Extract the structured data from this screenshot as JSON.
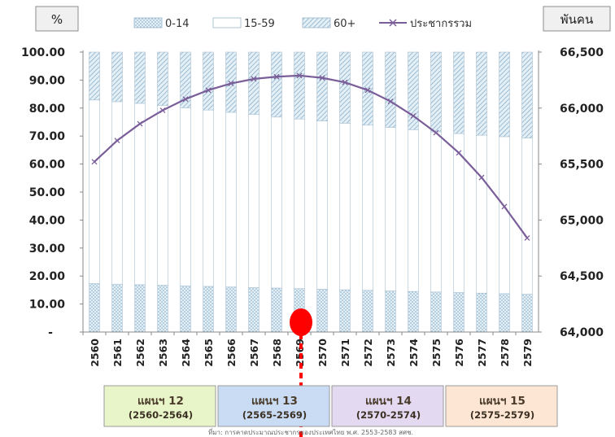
{
  "chart_data": {
    "type": "bar",
    "subtype": "stacked-100-with-line",
    "left_axis_unit": "%",
    "right_axis_unit": "พันคน",
    "left_ylim": [
      0,
      100
    ],
    "right_ylim": [
      64000,
      66500
    ],
    "left_ticks": [
      "-",
      "10.00",
      "20.00",
      "30.00",
      "40.00",
      "50.00",
      "60.00",
      "70.00",
      "80.00",
      "90.00",
      "100.00"
    ],
    "right_ticks": [
      "64,000",
      "64,500",
      "65,000",
      "65,500",
      "66,000",
      "66,500"
    ],
    "categories": [
      "2560",
      "2561",
      "2562",
      "2563",
      "2564",
      "2565",
      "2566",
      "2567",
      "2568",
      "2569",
      "2570",
      "2571",
      "2572",
      "2573",
      "2574",
      "2575",
      "2576",
      "2577",
      "2578",
      "2579"
    ],
    "series": [
      {
        "name": "0-14",
        "axis": "left",
        "color": "#cfe3ef",
        "pattern": "dots",
        "values": [
          17.3,
          17.1,
          16.9,
          16.7,
          16.5,
          16.3,
          16.1,
          15.9,
          15.7,
          15.5,
          15.3,
          15.1,
          14.9,
          14.7,
          14.5,
          14.3,
          14.1,
          13.9,
          13.7,
          13.5
        ]
      },
      {
        "name": "15-59",
        "axis": "left",
        "color": "#ffffff",
        "pattern": "none",
        "values": [
          65.6,
          65.2,
          64.8,
          64.2,
          63.6,
          63.0,
          62.4,
          61.8,
          61.1,
          60.6,
          60.1,
          59.5,
          59.0,
          58.4,
          57.8,
          57.2,
          56.8,
          56.4,
          56.1,
          55.8
        ]
      },
      {
        "name": "60+",
        "axis": "left",
        "color": "#cfe3ef",
        "pattern": "stripes",
        "values": [
          17.1,
          17.7,
          18.3,
          19.1,
          19.9,
          20.7,
          21.5,
          22.3,
          23.2,
          23.9,
          24.6,
          25.4,
          26.1,
          26.9,
          27.7,
          28.5,
          29.1,
          29.7,
          30.2,
          30.7
        ]
      },
      {
        "name": "ประชากรรวม",
        "type": "line",
        "axis": "right",
        "color": "#7a5e99",
        "values": [
          65520,
          65710,
          65860,
          65980,
          66080,
          66160,
          66220,
          66260,
          66280,
          66290,
          66270,
          66230,
          66160,
          66060,
          65930,
          65780,
          65600,
          65380,
          65120,
          64840
        ]
      }
    ],
    "legend_position": "top",
    "grid": false,
    "marker": {
      "category": "2569",
      "color": "#ff0000"
    },
    "plans": [
      {
        "name": "แผนฯ 12",
        "range": "(2560-2564)",
        "color": "#e8f5c8",
        "from": "2560",
        "to": "2564"
      },
      {
        "name": "แผนฯ 13",
        "range": "(2565-2569)",
        "color": "#c9dcf4",
        "from": "2565",
        "to": "2569"
      },
      {
        "name": "แผนฯ 14",
        "range": "(2570-2574)",
        "color": "#e3d9f1",
        "from": "2570",
        "to": "2574"
      },
      {
        "name": "แผนฯ 15",
        "range": "(2575-2579)",
        "color": "#fde6d3",
        "from": "2575",
        "to": "2579"
      }
    ],
    "footnote": "ที่มา: การคาดประมาณประชากรของประเทศไทย พ.ศ. 2553-2583 สศช."
  }
}
